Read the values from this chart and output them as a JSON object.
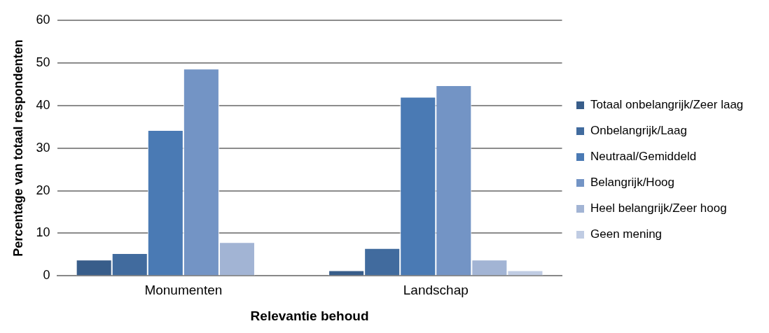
{
  "chart_data": {
    "type": "bar",
    "xlabel": "Relevantie behoud",
    "ylabel": "Percentage van totaal respondenten",
    "categories": [
      "Monumenten",
      "Landschap"
    ],
    "series": [
      {
        "name": "Totaal onbelangrijk/Zeer laag",
        "color": "#385d8a",
        "values": [
          3.8,
          1.3
        ]
      },
      {
        "name": "Onbelangrijk/Laag",
        "color": "#416b9e",
        "values": [
          5.3,
          6.5
        ]
      },
      {
        "name": "Neutraal/Gemiddeld",
        "color": "#4a7ab4",
        "values": [
          34.2,
          42.0
        ]
      },
      {
        "name": "Belangrijk/Hoog",
        "color": "#7394c5",
        "values": [
          48.6,
          44.7
        ]
      },
      {
        "name": "Heel belangrijk/Zeer hoog",
        "color": "#a2b4d4",
        "values": [
          7.9,
          3.8
        ]
      },
      {
        "name": "Geen mening",
        "color": "#c0cce3",
        "values": [
          0,
          1.3
        ]
      }
    ],
    "ylim": [
      0,
      60
    ],
    "yticks": [
      0,
      10,
      20,
      30,
      40,
      50,
      60
    ],
    "grid": "y",
    "legend": "right"
  }
}
